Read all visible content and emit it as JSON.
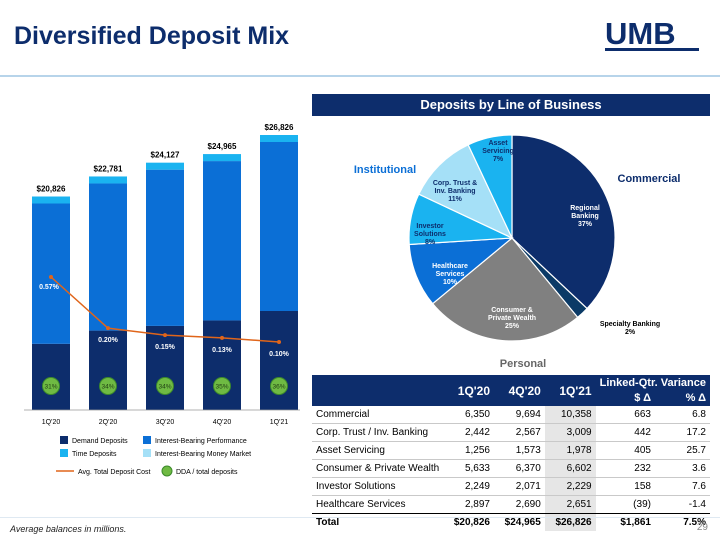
{
  "title": "Diversified Deposit Mix",
  "logo_text": "UMB",
  "colors": {
    "navy": "#0d2d6c",
    "blue": "#0b6fd6",
    "sky": "#1ab3f0",
    "light": "#a5e0f7",
    "gray": "#808080",
    "dark_navy": "#0b3a66",
    "orange": "#e0651a",
    "green": "#6fba43"
  },
  "chart_data": [
    {
      "type": "bar",
      "stacked": true,
      "categories": [
        "1Q'20",
        "2Q'20",
        "3Q'20",
        "4Q'20",
        "1Q'21"
      ],
      "totals": [
        "$20,826",
        "$22,781",
        "$24,127",
        "$24,965",
        "$26,826"
      ],
      "total_values": [
        20826,
        22781,
        24127,
        24965,
        26826
      ],
      "dda_share": [
        31,
        34,
        34,
        35,
        36
      ],
      "dda_labels": [
        "31%",
        "34%",
        "34%",
        "35%",
        "36%"
      ],
      "series": [
        {
          "name": "Demand Deposits",
          "key": "demand",
          "color": "#0d2d6c"
        },
        {
          "name": "Interest-Bearing Performance",
          "key": "perf",
          "color": "#0b6fd6"
        },
        {
          "name": "Time Deposits",
          "key": "time",
          "color": "#1ab3f0"
        },
        {
          "name": "Interest-Bearing Money Market",
          "key": "mm",
          "color": "#a5e0f7"
        }
      ],
      "line": {
        "name": "Avg. Total Deposit Cost",
        "values": [
          0.57,
          0.2,
          0.15,
          0.13,
          0.1
        ],
        "labels": [
          "0.57%",
          "0.20%",
          "0.15%",
          "0.13%",
          "0.10%"
        ],
        "color": "#e0651a"
      },
      "dda_legend": "DDA / total deposits"
    },
    {
      "type": "pie",
      "title": "Deposits by Line of Business",
      "slices": [
        {
          "label": "Regional Banking",
          "pct_label": "37%",
          "value": 37,
          "color": "#0d2d6c",
          "text_color": "#ffffff"
        },
        {
          "label": "Specialty Banking",
          "pct_label": "2%",
          "value": 2,
          "color": "#0b3a66",
          "text_color": "#000000"
        },
        {
          "label": "Consumer & Private Wealth",
          "pct_label": "25%",
          "value": 25,
          "color": "#808080",
          "text_color": "#ffffff"
        },
        {
          "label": "Healthcare Services",
          "pct_label": "10%",
          "value": 10,
          "color": "#0b6fd6",
          "text_color": "#ffffff"
        },
        {
          "label": "Investor Solutions",
          "pct_label": "8%",
          "value": 8,
          "color": "#1ab3f0",
          "text_color": "#0d2d6c"
        },
        {
          "label": "Corp. Trust & Inv. Banking",
          "pct_label": "11%",
          "value": 11,
          "color": "#a5e0f7",
          "text_color": "#0d2d6c"
        },
        {
          "label": "Asset Servicing",
          "pct_label": "7%",
          "value": 7,
          "color": "#1ab3f0",
          "text_color": "#0d2d6c"
        }
      ],
      "group_labels": {
        "institutional": "Institutional",
        "commercial": "Commercial",
        "personal": "Personal"
      }
    }
  ],
  "table": {
    "headers": {
      "h1": "1Q'20",
      "h2": "4Q'20",
      "h3": "1Q'21",
      "variance": "Linked-Qtr. Variance",
      "dollar_delta": "$ Δ",
      "pct_delta": "% Δ"
    },
    "rows": [
      {
        "name": "Commercial",
        "q1_20": "6,350",
        "q4_20": "9,694",
        "q1_21": "10,358",
        "d": "663",
        "p": "6.8"
      },
      {
        "name": "Corp. Trust / Inv. Banking",
        "q1_20": "2,442",
        "q4_20": "2,567",
        "q1_21": "3,009",
        "d": "442",
        "p": "17.2"
      },
      {
        "name": "Asset Servicing",
        "q1_20": "1,256",
        "q4_20": "1,573",
        "q1_21": "1,978",
        "d": "405",
        "p": "25.7"
      },
      {
        "name": "Consumer & Private Wealth",
        "q1_20": "5,633",
        "q4_20": "6,370",
        "q1_21": "6,602",
        "d": "232",
        "p": "3.6"
      },
      {
        "name": "Investor Solutions",
        "q1_20": "2,249",
        "q4_20": "2,071",
        "q1_21": "2,229",
        "d": "158",
        "p": "7.6"
      },
      {
        "name": "Healthcare Services",
        "q1_20": "2,897",
        "q4_20": "2,690",
        "q1_21": "2,651",
        "d": "(39)",
        "p": "-1.4"
      }
    ],
    "total": {
      "name": "Total",
      "q1_20": "$20,826",
      "q4_20": "$24,965",
      "q1_21": "$26,826",
      "d": "$1,861",
      "p": "7.5%"
    }
  },
  "footnote": "Average balances in millions.",
  "page_number": "29"
}
